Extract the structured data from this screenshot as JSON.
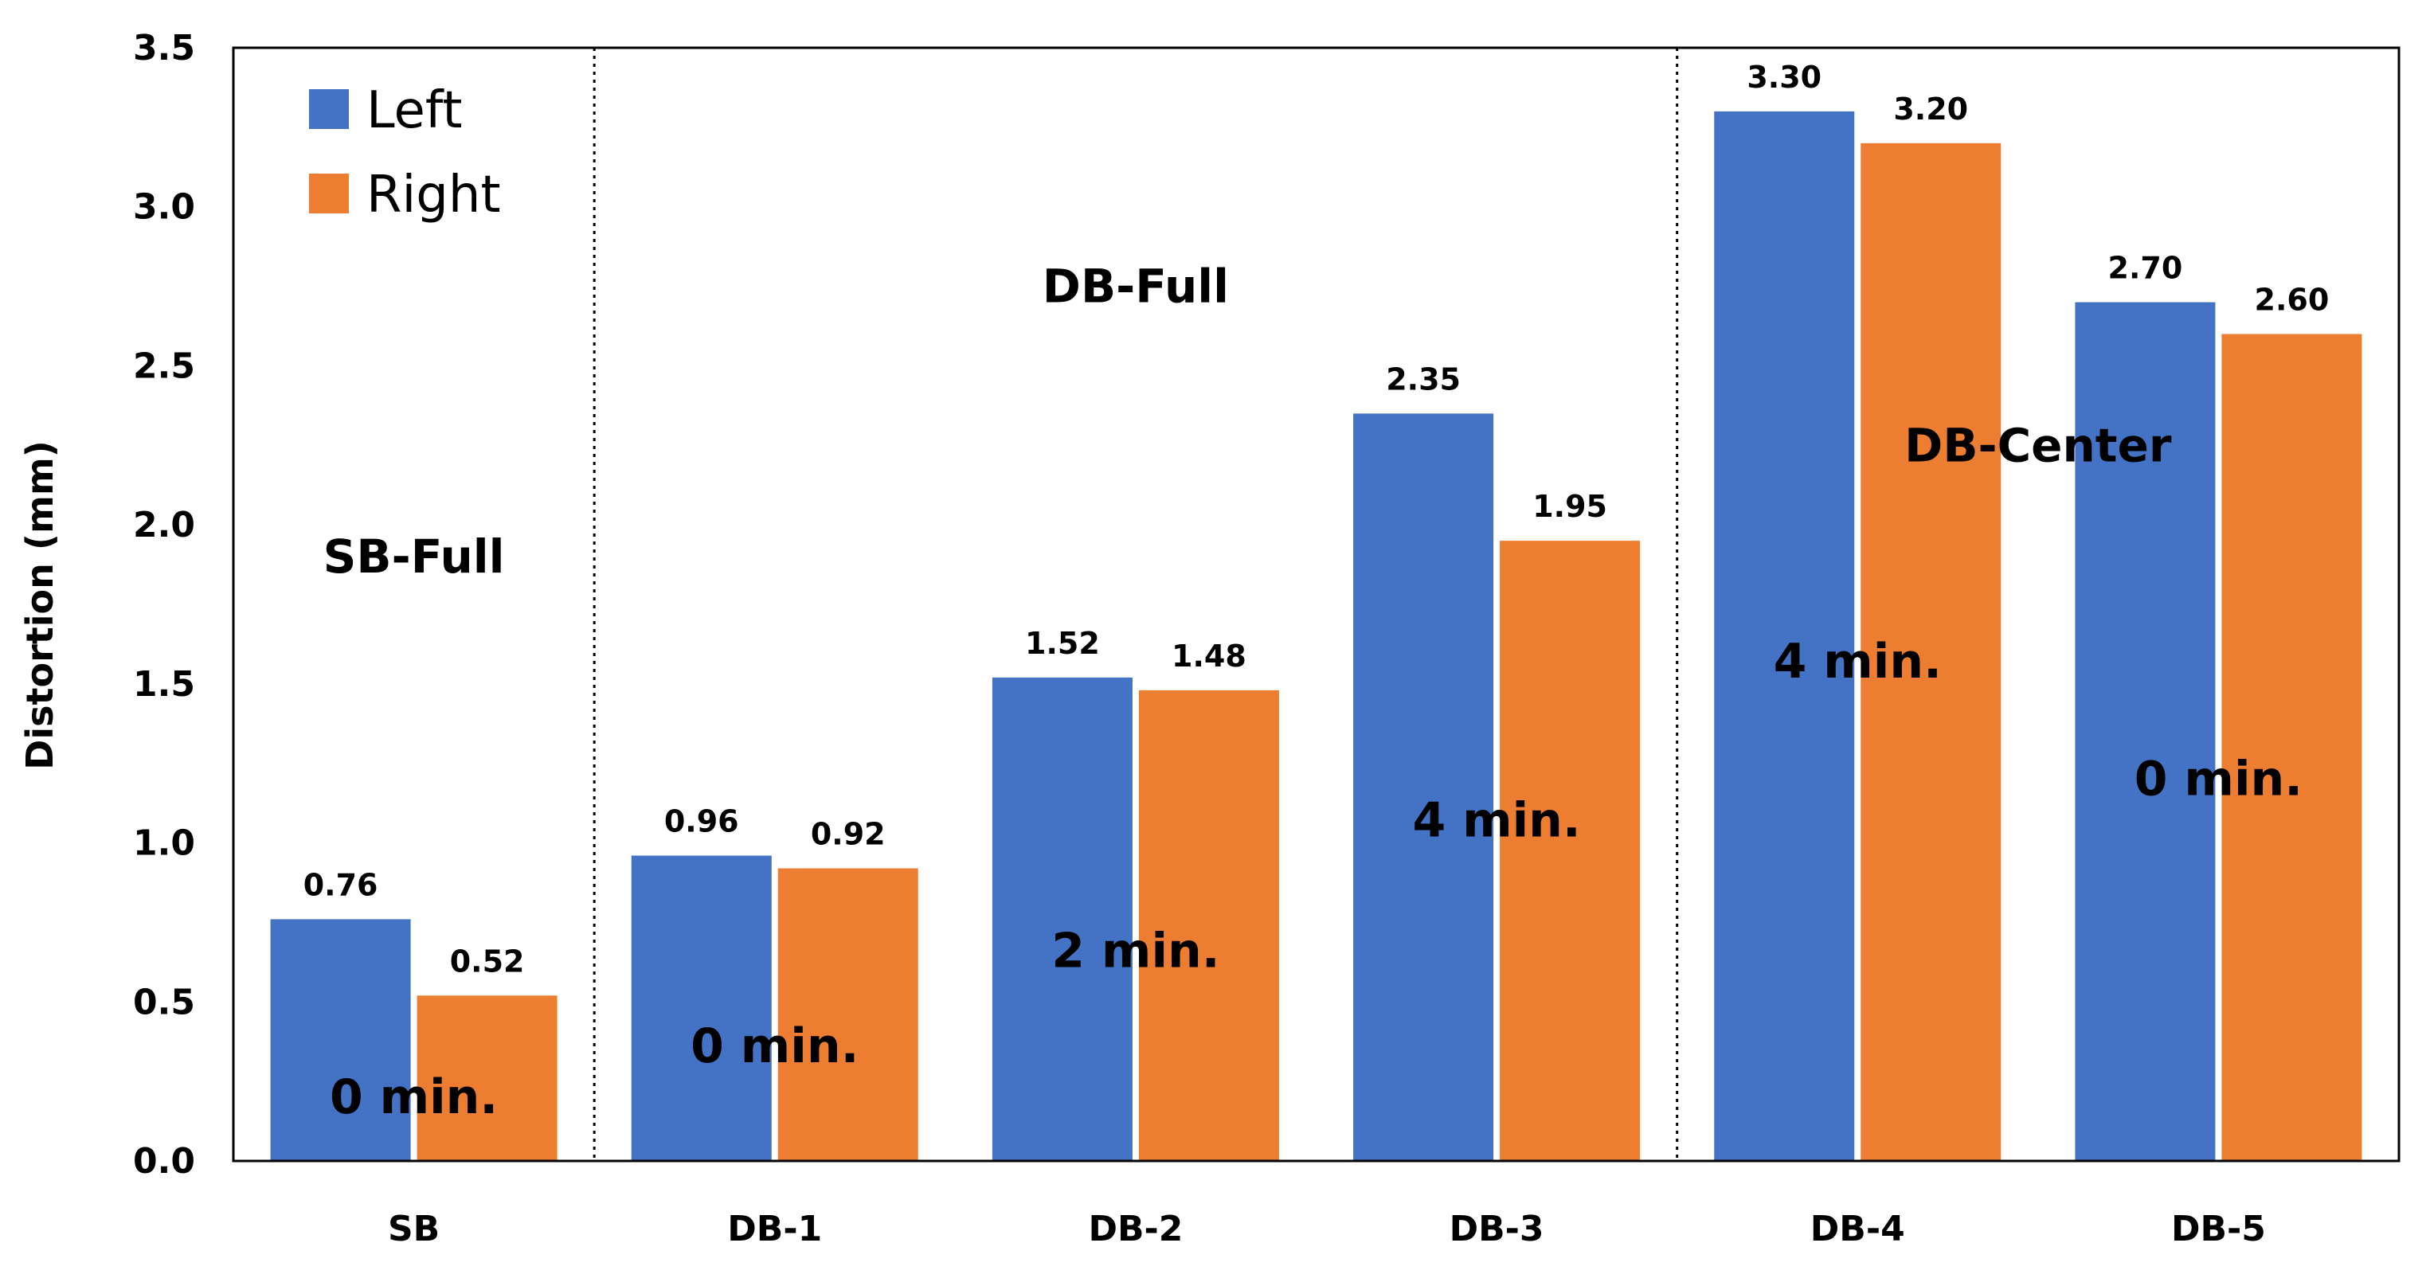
{
  "chart_data": {
    "type": "bar",
    "title": "",
    "xlabel": "",
    "ylabel": "Distortion (mm)",
    "ylim": [
      0,
      3.5
    ],
    "yticks": [
      "0.0",
      "0.5",
      "1.0",
      "1.5",
      "2.0",
      "2.5",
      "3.0",
      "3.5"
    ],
    "categories": [
      "SB",
      "DB-1",
      "DB-2",
      "DB-3",
      "DB-4",
      "DB-5"
    ],
    "series": [
      {
        "name": "Left",
        "color": "#4472C4",
        "values": [
          0.76,
          0.96,
          1.52,
          2.35,
          3.3,
          2.7
        ],
        "labels": [
          "0.76",
          "0.96",
          "1.52",
          "2.35",
          "3.30",
          "2.70"
        ]
      },
      {
        "name": "Right",
        "color": "#ED7D31",
        "values": [
          0.52,
          0.92,
          1.48,
          1.95,
          3.2,
          2.6
        ],
        "labels": [
          "0.52",
          "0.92",
          "1.48",
          "1.95",
          "3.20",
          "2.60"
        ]
      }
    ],
    "legend": {
      "position": "top-left",
      "entries": [
        "Left",
        "Right"
      ]
    },
    "group_labels": [
      {
        "text": "SB-Full",
        "category_index": 0,
        "y_value": 1.9
      },
      {
        "text": "DB-Full",
        "category_index": 2,
        "y_value": 2.75
      },
      {
        "text": "DB-Center",
        "category_index": 4.5,
        "y_value": 2.25
      }
    ],
    "time_annotations": [
      {
        "text": "0 min.",
        "category_index": 0,
        "y_value": 0.2
      },
      {
        "text": "0 min.",
        "category_index": 1,
        "y_value": 0.36
      },
      {
        "text": "2 min.",
        "category_index": 2,
        "y_value": 0.66
      },
      {
        "text": "4 min.",
        "category_index": 3,
        "y_value": 1.07
      },
      {
        "text": "4 min.",
        "category_index": 4,
        "y_value": 1.57
      },
      {
        "text": "0 min.",
        "category_index": 5,
        "y_value": 1.2
      }
    ],
    "dividers_after_category": [
      0,
      3
    ],
    "grid": false
  }
}
